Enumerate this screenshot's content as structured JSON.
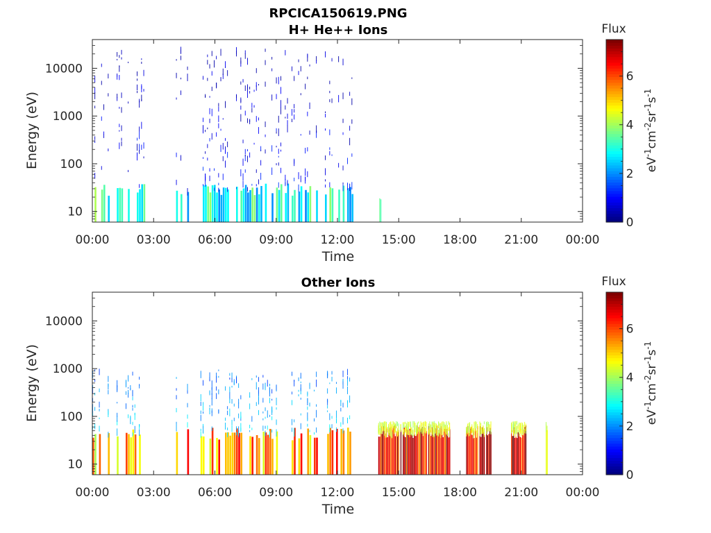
{
  "figure": {
    "main_title": "RPCICA150619.PNG"
  },
  "chart_data": [
    {
      "type": "heatmap",
      "title": "H+ He++ Ions",
      "xlabel": "Time",
      "ylabel": "Energy (eV)",
      "x_ticks": [
        "00:00",
        "03:00",
        "06:00",
        "09:00",
        "12:00",
        "15:00",
        "18:00",
        "21:00",
        "00:00"
      ],
      "x_range_hours": [
        0,
        24
      ],
      "y_scale": "log",
      "y_ticks": [
        10,
        100,
        1000,
        10000
      ],
      "y_ticks_labels": [
        "10",
        "100",
        "1000",
        "10000"
      ],
      "ylim": [
        6,
        40000
      ],
      "colorbar": {
        "label": "Flux",
        "units": "eV-1cm-2sr-1s-1",
        "ticks": [
          "0",
          "2",
          "4",
          "6"
        ],
        "range": [
          0,
          7.5
        ],
        "colormap": "jet"
      },
      "data_intervals": [
        {
          "start": 0.0,
          "end": 2.6,
          "emin": 6,
          "emax": 30000,
          "core_emax": 30,
          "core_flux": 3.0,
          "high_flux": 1.0,
          "density": 0.6
        },
        {
          "start": 4.1,
          "end": 12.8,
          "emin": 6,
          "emax": 30000,
          "core_emax": 30,
          "core_flux": 3.0,
          "high_flux": 1.0,
          "density": 0.6
        },
        {
          "start": 14.05,
          "end": 14.12,
          "emin": 6,
          "emax": 15,
          "core_emax": 15,
          "core_flux": 3.5,
          "high_flux": 3.5,
          "density": 1.0
        }
      ]
    },
    {
      "type": "heatmap",
      "title": "Other Ions",
      "xlabel": "Time",
      "ylabel": "Energy (eV)",
      "x_ticks": [
        "00:00",
        "03:00",
        "06:00",
        "09:00",
        "12:00",
        "15:00",
        "18:00",
        "21:00",
        "00:00"
      ],
      "x_range_hours": [
        0,
        24
      ],
      "y_scale": "log",
      "y_ticks": [
        10,
        100,
        1000,
        10000
      ],
      "y_ticks_labels": [
        "10",
        "100",
        "1000",
        "10000"
      ],
      "ylim": [
        6,
        40000
      ],
      "colorbar": {
        "label": "Flux",
        "units": "eV-1cm-2sr-1s-1",
        "ticks": [
          "0",
          "2",
          "4",
          "6"
        ],
        "range": [
          0,
          7.5
        ],
        "colormap": "jet"
      },
      "data_intervals": [
        {
          "start": 0.0,
          "end": 2.6,
          "emin": 6,
          "emax": 1000,
          "core_emax": 45,
          "core_flux": 5.0,
          "high_flux": 2.5,
          "density": 0.6
        },
        {
          "start": 4.1,
          "end": 12.8,
          "emin": 6,
          "emax": 1000,
          "core_emax": 45,
          "core_flux": 5.5,
          "high_flux": 2.5,
          "density": 0.6
        },
        {
          "start": 14.0,
          "end": 17.5,
          "emin": 6,
          "emax": 80,
          "core_emax": 50,
          "core_flux": 6.5,
          "high_flux": 4.5,
          "density": 0.95
        },
        {
          "start": 18.3,
          "end": 19.5,
          "emin": 6,
          "emax": 80,
          "core_emax": 50,
          "core_flux": 6.5,
          "high_flux": 4.5,
          "density": 0.95
        },
        {
          "start": 20.5,
          "end": 21.25,
          "emin": 6,
          "emax": 80,
          "core_emax": 50,
          "core_flux": 6.8,
          "high_flux": 4.5,
          "density": 0.95
        },
        {
          "start": 22.2,
          "end": 22.3,
          "emin": 6,
          "emax": 80,
          "core_emax": 50,
          "core_flux": 5.5,
          "high_flux": 4.5,
          "density": 1.0
        }
      ]
    }
  ]
}
